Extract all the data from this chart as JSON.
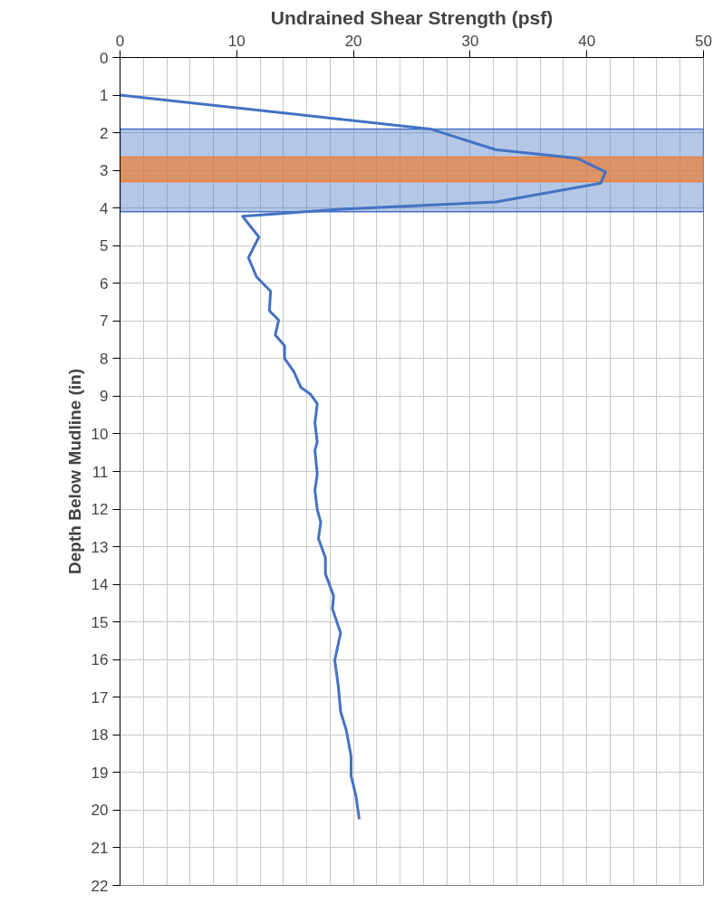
{
  "chart_data": {
    "type": "line",
    "title": "Undrained Shear Strength (psf)",
    "ylabel": "Depth Below Mudline (in)",
    "xlim": [
      0,
      50
    ],
    "xticks": [
      0,
      10,
      20,
      30,
      40,
      50
    ],
    "ylim": [
      22,
      0
    ],
    "yticks": [
      0,
      1,
      2,
      3,
      4,
      5,
      6,
      7,
      8,
      9,
      10,
      11,
      12,
      13,
      14,
      15,
      16,
      17,
      18,
      19,
      20,
      21,
      22
    ],
    "grid": true,
    "line_style": "solid",
    "bands": [
      {
        "axis": "y",
        "from": 1.9,
        "to": 4.1,
        "color": "#4472c4"
      },
      {
        "axis": "y",
        "from": 2.65,
        "to": 3.3,
        "color": "#ed7d31"
      }
    ],
    "series": [
      {
        "color": "#4472c4",
        "x": [
          0,
          26.6,
          32.2,
          39.2,
          41.6,
          41.2,
          32.2,
          18.9,
          10.5,
          11.9,
          11.0,
          11.7,
          12.9,
          12.8,
          13.6,
          13.3,
          14.1,
          14.1,
          14.9,
          15.5,
          16.3,
          16.9,
          16.7,
          16.9,
          16.7,
          16.9,
          16.7,
          16.9,
          17.2,
          17.0,
          17.6,
          17.6,
          18.3,
          18.2,
          18.9,
          18.4,
          18.7,
          18.9,
          19.4,
          19.8,
          19.8,
          20.2,
          20.5
        ],
        "values": [
          1.0,
          1.9,
          2.45,
          2.68,
          3.04,
          3.34,
          3.84,
          4.03,
          4.22,
          4.77,
          5.32,
          5.83,
          6.21,
          6.73,
          6.98,
          7.37,
          7.66,
          8.0,
          8.35,
          8.77,
          8.94,
          9.2,
          9.71,
          10.22,
          10.43,
          11.07,
          11.5,
          12.01,
          12.35,
          12.78,
          13.29,
          13.72,
          14.31,
          14.65,
          15.29,
          16.02,
          16.7,
          17.38,
          17.89,
          18.57,
          19.09,
          19.6,
          20.24
        ]
      }
    ]
  }
}
